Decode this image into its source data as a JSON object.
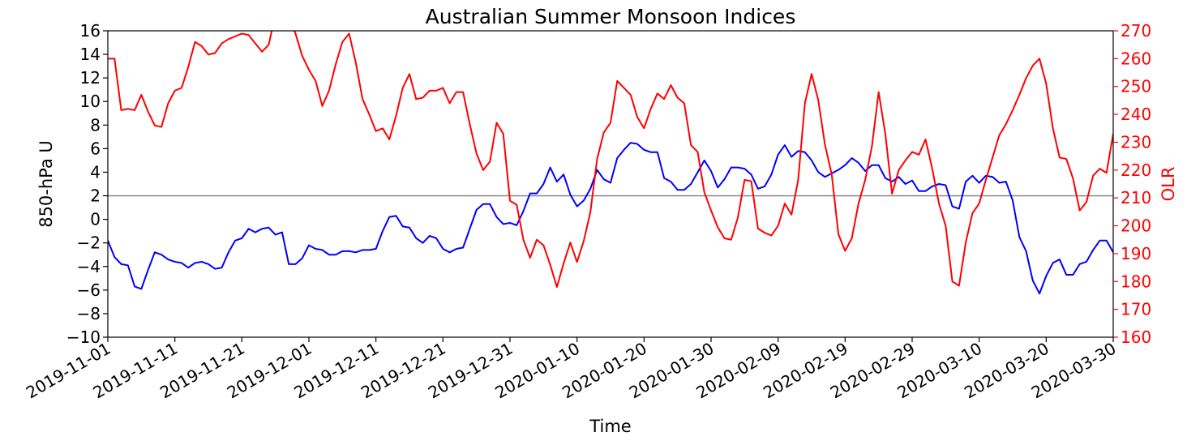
{
  "chart_data": {
    "type": "line",
    "title": "Australian Summer Monsoon Indices",
    "xlabel": "Time",
    "ylabel": "850-hPa U",
    "y2label": "OLR",
    "xlim": [
      "2019-11-01",
      "2020-03-30"
    ],
    "ylim": [
      -10,
      16
    ],
    "y2lim": [
      160,
      270
    ],
    "x_start": "2019-11-01",
    "x_ticks": [
      "2019-11-01",
      "2019-11-11",
      "2019-11-21",
      "2019-12-01",
      "2019-12-11",
      "2019-12-21",
      "2019-12-31",
      "2020-01-10",
      "2020-01-20",
      "2020-01-30",
      "2020-02-09",
      "2020-02-19",
      "2020-02-29",
      "2020-03-10",
      "2020-03-20",
      "2020-03-30"
    ],
    "y_ticks": [
      -10,
      -8,
      -6,
      -4,
      -2,
      0,
      2,
      4,
      6,
      8,
      10,
      12,
      14,
      16
    ],
    "y2_ticks": [
      160,
      170,
      180,
      190,
      200,
      210,
      220,
      230,
      240,
      250,
      260,
      270
    ],
    "reference_line": {
      "y": 2,
      "color": "#808080"
    },
    "grid": false,
    "colors": {
      "u": "#0000ff",
      "olr": "#ff0000",
      "axis2": "#ff0000",
      "axis": "#000000"
    },
    "series": [
      {
        "axis": "left",
        "color": "#0000ff",
        "values": [
          -1.8,
          -3.2,
          -3.8,
          -3.9,
          -5.7,
          -5.9,
          -4.3,
          -2.8,
          -3.0,
          -3.4,
          -3.6,
          -3.7,
          -4.1,
          -3.7,
          -3.6,
          -3.8,
          -4.2,
          -4.1,
          -2.8,
          -1.8,
          -1.6,
          -0.8,
          -1.1,
          -0.8,
          -0.7,
          -1.3,
          -1.1,
          -3.8,
          -3.8,
          -3.3,
          -2.2,
          -2.5,
          -2.6,
          -3.0,
          -3.0,
          -2.7,
          -2.7,
          -2.8,
          -2.6,
          -2.6,
          -2.5,
          -1.0,
          0.2,
          0.3,
          -0.6,
          -0.7,
          -1.6,
          -2.0,
          -1.4,
          -1.6,
          -2.5,
          -2.8,
          -2.5,
          -2.4,
          -0.8,
          0.8,
          1.3,
          1.3,
          0.2,
          -0.4,
          -0.3,
          -0.5,
          0.7,
          2.2,
          2.2,
          3.0,
          4.4,
          3.2,
          3.8,
          2.1,
          1.1,
          1.6,
          2.6,
          4.2,
          3.4,
          3.1,
          5.2,
          5.9,
          6.5,
          6.4,
          5.9,
          5.7,
          5.7,
          3.5,
          3.2,
          2.5,
          2.5,
          3.0,
          4.0,
          5.0,
          4.1,
          2.7,
          3.4,
          4.4,
          4.4,
          4.3,
          3.8,
          2.6,
          2.8,
          3.8,
          5.5,
          6.3,
          5.3,
          5.8,
          5.7,
          5.0,
          4.0,
          3.6,
          3.9,
          4.2,
          4.6,
          5.2,
          4.8,
          4.1,
          4.6,
          4.6,
          3.5,
          3.2,
          3.6,
          3.0,
          3.3,
          2.4,
          2.4,
          2.8,
          3.0,
          2.9,
          1.1,
          0.9,
          3.2,
          3.7,
          3.1,
          3.7,
          3.6,
          3.1,
          3.2,
          1.6,
          -1.5,
          -2.7,
          -5.2,
          -6.3,
          -4.8,
          -3.7,
          -3.4,
          -4.7,
          -4.7,
          -3.8,
          -3.6,
          -2.6,
          -1.8,
          -1.8,
          -2.8
        ]
      },
      {
        "axis": "right",
        "color": "#ff0000",
        "values": [
          260,
          260,
          241.5,
          242,
          241.5,
          247,
          241,
          236,
          235.5,
          244,
          248.5,
          249.5,
          257,
          266,
          264.5,
          261.5,
          262,
          265.5,
          267,
          268,
          269,
          268.5,
          265.5,
          262.5,
          265,
          276,
          276,
          275,
          269,
          261,
          256,
          252,
          243,
          248.5,
          258,
          266,
          269,
          258.5,
          245.5,
          240,
          234,
          235,
          231,
          239.5,
          249.5,
          254.5,
          245.5,
          246,
          248.5,
          248.5,
          249.5,
          244,
          248,
          248,
          236.5,
          226,
          220,
          223,
          237,
          233,
          209,
          207.5,
          195,
          188.5,
          195,
          193,
          186,
          178,
          186.5,
          194,
          187,
          194.5,
          205,
          224,
          233.5,
          237,
          252,
          249.5,
          247,
          239,
          235,
          242,
          247.5,
          245.5,
          250.5,
          246,
          244,
          229,
          226.5,
          212,
          205.5,
          199.5,
          195.5,
          195,
          203,
          216.5,
          216,
          199,
          197.5,
          196.5,
          200,
          208,
          204,
          216.5,
          244,
          254.5,
          245,
          229,
          218.5,
          197,
          191,
          195.5,
          208,
          216.5,
          228.5,
          248,
          233,
          211.5,
          220,
          223.5,
          226.5,
          225.5,
          231,
          220.5,
          208,
          200,
          180,
          178.5,
          194,
          204.5,
          208,
          216.5,
          224.5,
          232.5,
          236.5,
          241.5,
          247,
          253,
          257.5,
          260,
          251,
          235,
          224.5,
          224,
          217,
          205.5,
          208.5,
          218,
          220.5,
          219,
          233,
          234
        ]
      }
    ]
  }
}
